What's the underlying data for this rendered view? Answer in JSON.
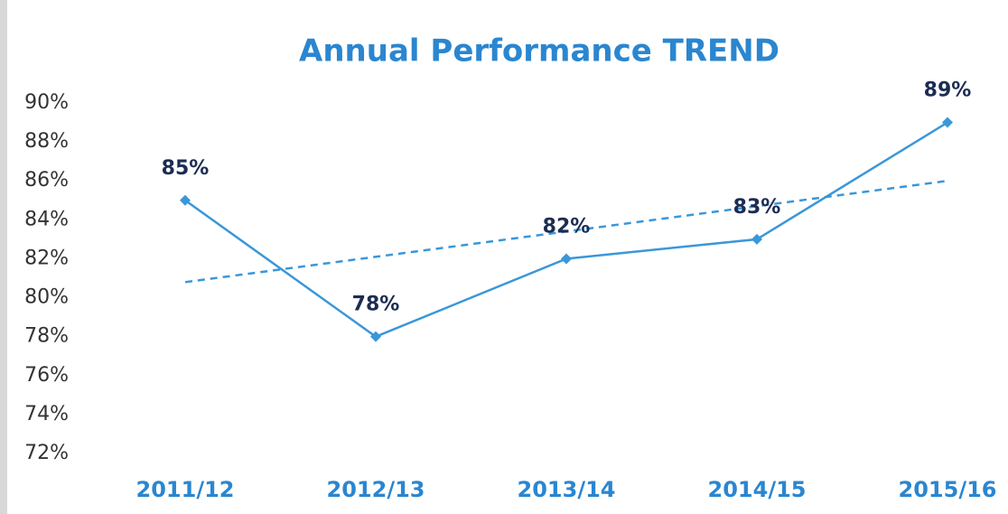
{
  "chart_data": {
    "type": "line",
    "title": "Annual Performance TREND",
    "categories": [
      "2011/12",
      "2012/13",
      "2013/14",
      "2014/15",
      "2015/16"
    ],
    "series": [
      {
        "color": "#3a97d8",
        "values": [
          85,
          78,
          82,
          83,
          89
        ],
        "value_labels": [
          "85%",
          "78%",
          "82%",
          "83%",
          "89%"
        ]
      }
    ],
    "trendline": true,
    "ylim": [
      72,
      90
    ],
    "yticks": [
      {
        "value": 72,
        "label": "72%"
      },
      {
        "value": 74,
        "label": "74%"
      },
      {
        "value": 76,
        "label": "76%"
      },
      {
        "value": 78,
        "label": "78%"
      },
      {
        "value": 80,
        "label": "80%"
      },
      {
        "value": 82,
        "label": "82%"
      },
      {
        "value": 84,
        "label": "84%"
      },
      {
        "value": 86,
        "label": "86%"
      },
      {
        "value": 88,
        "label": "88%"
      },
      {
        "value": 90,
        "label": "90%"
      }
    ],
    "grid": false
  }
}
